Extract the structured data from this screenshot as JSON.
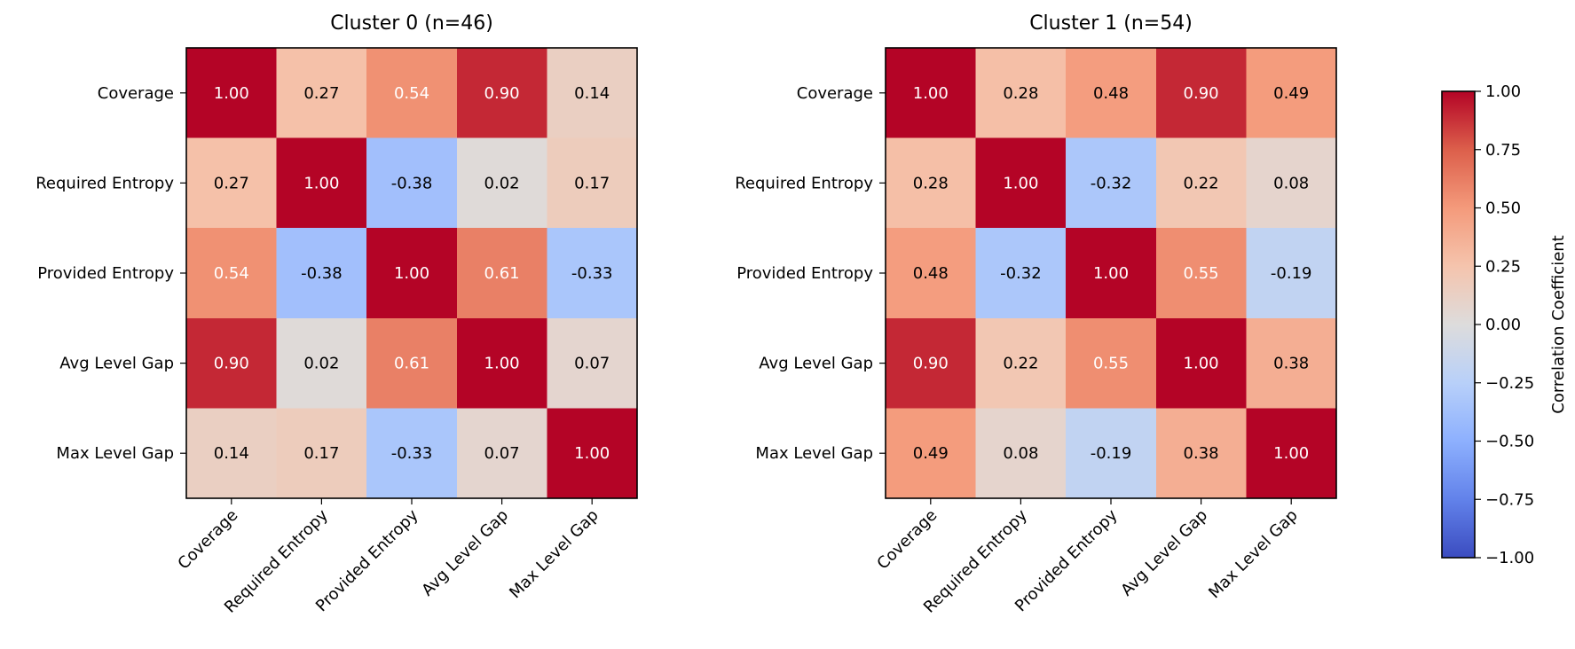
{
  "colormap": {
    "name": "coolwarm",
    "stops": [
      [
        0.0,
        "#3b4cc0"
      ],
      [
        0.125,
        "#6282ea"
      ],
      [
        0.25,
        "#8db0fe"
      ],
      [
        0.375,
        "#b8d0f9"
      ],
      [
        0.5,
        "#dddcdc"
      ],
      [
        0.625,
        "#f5c4ad"
      ],
      [
        0.75,
        "#f49a7b"
      ],
      [
        0.875,
        "#dc5f4b"
      ],
      [
        1.0,
        "#b40426"
      ]
    ]
  },
  "chart_data": [
    {
      "type": "heatmap",
      "title": "Cluster 0 (n=46)",
      "rows": [
        "Coverage",
        "Required Entropy",
        "Provided Entropy",
        "Avg Level Gap",
        "Max Level Gap"
      ],
      "columns": [
        "Coverage",
        "Required Entropy",
        "Provided Entropy",
        "Avg Level Gap",
        "Max Level Gap"
      ],
      "values": [
        [
          1.0,
          0.27,
          0.54,
          0.9,
          0.14
        ],
        [
          0.27,
          1.0,
          -0.38,
          0.02,
          0.17
        ],
        [
          0.54,
          -0.38,
          1.0,
          0.61,
          -0.33
        ],
        [
          0.9,
          0.02,
          0.61,
          1.0,
          0.07
        ],
        [
          0.14,
          0.17,
          -0.33,
          0.07,
          1.0
        ]
      ],
      "vmin": -1.0,
      "vmax": 1.0,
      "grid": false
    },
    {
      "type": "heatmap",
      "title": "Cluster 1 (n=54)",
      "rows": [
        "Coverage",
        "Required Entropy",
        "Provided Entropy",
        "Avg Level Gap",
        "Max Level Gap"
      ],
      "columns": [
        "Coverage",
        "Required Entropy",
        "Provided Entropy",
        "Avg Level Gap",
        "Max Level Gap"
      ],
      "values": [
        [
          1.0,
          0.28,
          0.48,
          0.9,
          0.49
        ],
        [
          0.28,
          1.0,
          -0.32,
          0.22,
          0.08
        ],
        [
          0.48,
          -0.32,
          1.0,
          0.55,
          -0.19
        ],
        [
          0.9,
          0.22,
          0.55,
          1.0,
          0.38
        ],
        [
          0.49,
          0.08,
          -0.19,
          0.38,
          1.0
        ]
      ],
      "vmin": -1.0,
      "vmax": 1.0,
      "grid": false
    }
  ],
  "colorbar": {
    "label": "Correlation Coefficient",
    "ticks": [
      -1.0,
      -0.75,
      -0.5,
      -0.25,
      0.0,
      0.25,
      0.5,
      0.75,
      1.0
    ],
    "tick_labels": [
      "−1.00",
      "−0.75",
      "−0.50",
      "−0.25",
      "0.00",
      "0.25",
      "0.50",
      "0.75",
      "1.00"
    ]
  }
}
